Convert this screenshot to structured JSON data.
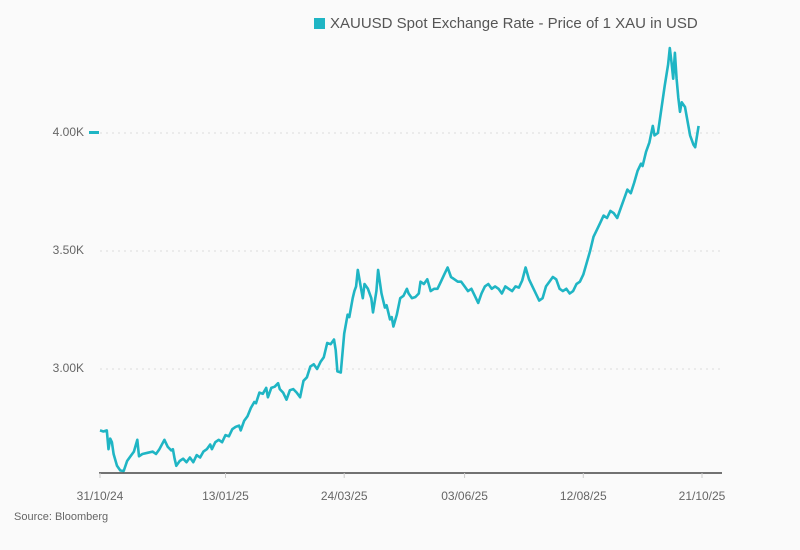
{
  "legend": {
    "label": "XAUUSD Spot Exchange Rate - Price of 1 XAU in USD",
    "color": "#1fb5c4"
  },
  "source": "Source: Bloomberg",
  "y_ticks": [
    {
      "label": "4.00K",
      "value": 4000
    },
    {
      "label": "3.50K",
      "value": 3500
    },
    {
      "label": "3.00K",
      "value": 3000
    }
  ],
  "x_ticks": [
    {
      "label": "31/10/24",
      "day": 0
    },
    {
      "label": "13/01/25",
      "day": 74
    },
    {
      "label": "24/03/25",
      "day": 144
    },
    {
      "label": "03/06/25",
      "day": 215
    },
    {
      "label": "12/08/25",
      "day": 285
    },
    {
      "label": "21/10/25",
      "day": 355
    }
  ],
  "chart_data": {
    "type": "line",
    "title": "XAUUSD Spot Exchange Rate - Price of 1 XAU in USD",
    "xlabel": "",
    "ylabel": "",
    "ylim": [
      2565,
      4390
    ],
    "x_range_days": [
      0,
      360
    ],
    "grid": true,
    "legend_position": "top",
    "series": [
      {
        "name": "XAUUSD Spot Exchange Rate - Price of 1 XAU in USD",
        "points": [
          [
            0,
            2740
          ],
          [
            2,
            2735
          ],
          [
            4,
            2740
          ],
          [
            5,
            2660
          ],
          [
            6,
            2705
          ],
          [
            7,
            2690
          ],
          [
            8,
            2640
          ],
          [
            10,
            2590
          ],
          [
            12,
            2570
          ],
          [
            14,
            2568
          ],
          [
            16,
            2610
          ],
          [
            18,
            2630
          ],
          [
            20,
            2650
          ],
          [
            22,
            2700
          ],
          [
            23,
            2630
          ],
          [
            25,
            2640
          ],
          [
            28,
            2645
          ],
          [
            31,
            2650
          ],
          [
            33,
            2640
          ],
          [
            35,
            2660
          ],
          [
            38,
            2700
          ],
          [
            40,
            2670
          ],
          [
            42,
            2655
          ],
          [
            43,
            2660
          ],
          [
            44,
            2620
          ],
          [
            45,
            2590
          ],
          [
            47,
            2610
          ],
          [
            49,
            2620
          ],
          [
            51,
            2605
          ],
          [
            53,
            2625
          ],
          [
            55,
            2605
          ],
          [
            57,
            2635
          ],
          [
            59,
            2625
          ],
          [
            61,
            2650
          ],
          [
            63,
            2660
          ],
          [
            65,
            2680
          ],
          [
            66,
            2660
          ],
          [
            68,
            2690
          ],
          [
            70,
            2700
          ],
          [
            72,
            2690
          ],
          [
            74,
            2720
          ],
          [
            76,
            2715
          ],
          [
            78,
            2745
          ],
          [
            80,
            2755
          ],
          [
            82,
            2760
          ],
          [
            83,
            2740
          ],
          [
            85,
            2780
          ],
          [
            87,
            2800
          ],
          [
            89,
            2835
          ],
          [
            91,
            2860
          ],
          [
            92,
            2855
          ],
          [
            94,
            2900
          ],
          [
            96,
            2895
          ],
          [
            98,
            2920
          ],
          [
            99,
            2880
          ],
          [
            101,
            2920
          ],
          [
            103,
            2925
          ],
          [
            105,
            2940
          ],
          [
            106,
            2915
          ],
          [
            108,
            2900
          ],
          [
            110,
            2870
          ],
          [
            112,
            2910
          ],
          [
            114,
            2915
          ],
          [
            116,
            2900
          ],
          [
            118,
            2880
          ],
          [
            120,
            2950
          ],
          [
            122,
            2965
          ],
          [
            124,
            3010
          ],
          [
            126,
            3020
          ],
          [
            128,
            3000
          ],
          [
            130,
            3030
          ],
          [
            132,
            3050
          ],
          [
            134,
            3110
          ],
          [
            136,
            3105
          ],
          [
            138,
            3125
          ],
          [
            139,
            3080
          ],
          [
            140,
            2990
          ],
          [
            142,
            2985
          ],
          [
            144,
            3150
          ],
          [
            146,
            3230
          ],
          [
            147,
            3220
          ],
          [
            149,
            3300
          ],
          [
            150,
            3330
          ],
          [
            151,
            3350
          ],
          [
            152,
            3420
          ],
          [
            154,
            3340
          ],
          [
            155,
            3300
          ],
          [
            156,
            3360
          ],
          [
            158,
            3340
          ],
          [
            160,
            3300
          ],
          [
            161,
            3240
          ],
          [
            163,
            3330
          ],
          [
            164,
            3420
          ],
          [
            166,
            3320
          ],
          [
            168,
            3260
          ],
          [
            169,
            3270
          ],
          [
            171,
            3210
          ],
          [
            172,
            3220
          ],
          [
            173,
            3180
          ],
          [
            175,
            3230
          ],
          [
            177,
            3300
          ],
          [
            179,
            3310
          ],
          [
            181,
            3340
          ],
          [
            182,
            3320
          ],
          [
            184,
            3300
          ],
          [
            186,
            3305
          ],
          [
            188,
            3320
          ],
          [
            189,
            3370
          ],
          [
            191,
            3360
          ],
          [
            193,
            3380
          ],
          [
            195,
            3330
          ],
          [
            197,
            3340
          ],
          [
            199,
            3340
          ],
          [
            201,
            3370
          ],
          [
            203,
            3400
          ],
          [
            205,
            3430
          ],
          [
            207,
            3390
          ],
          [
            209,
            3380
          ],
          [
            211,
            3370
          ],
          [
            213,
            3370
          ],
          [
            215,
            3350
          ],
          [
            217,
            3330
          ],
          [
            219,
            3340
          ],
          [
            221,
            3310
          ],
          [
            223,
            3280
          ],
          [
            225,
            3320
          ],
          [
            227,
            3350
          ],
          [
            229,
            3360
          ],
          [
            231,
            3340
          ],
          [
            233,
            3350
          ],
          [
            235,
            3340
          ],
          [
            237,
            3320
          ],
          [
            239,
            3350
          ],
          [
            241,
            3340
          ],
          [
            243,
            3330
          ],
          [
            245,
            3350
          ],
          [
            247,
            3345
          ],
          [
            249,
            3375
          ],
          [
            251,
            3430
          ],
          [
            253,
            3380
          ],
          [
            255,
            3350
          ],
          [
            257,
            3320
          ],
          [
            259,
            3290
          ],
          [
            261,
            3300
          ],
          [
            263,
            3350
          ],
          [
            265,
            3370
          ],
          [
            267,
            3390
          ],
          [
            269,
            3380
          ],
          [
            271,
            3340
          ],
          [
            273,
            3330
          ],
          [
            275,
            3340
          ],
          [
            277,
            3320
          ],
          [
            279,
            3330
          ],
          [
            281,
            3360
          ],
          [
            283,
            3370
          ],
          [
            285,
            3400
          ],
          [
            287,
            3450
          ],
          [
            289,
            3500
          ],
          [
            291,
            3560
          ],
          [
            293,
            3590
          ],
          [
            295,
            3620
          ],
          [
            297,
            3650
          ],
          [
            299,
            3640
          ],
          [
            301,
            3670
          ],
          [
            303,
            3660
          ],
          [
            305,
            3640
          ],
          [
            307,
            3680
          ],
          [
            309,
            3720
          ],
          [
            311,
            3760
          ],
          [
            313,
            3745
          ],
          [
            315,
            3790
          ],
          [
            317,
            3840
          ],
          [
            319,
            3870
          ],
          [
            320,
            3860
          ],
          [
            322,
            3920
          ],
          [
            324,
            3960
          ],
          [
            326,
            4030
          ],
          [
            327,
            3990
          ],
          [
            329,
            4000
          ],
          [
            331,
            4100
          ],
          [
            333,
            4200
          ],
          [
            335,
            4290
          ],
          [
            336,
            4360
          ],
          [
            337,
            4300
          ],
          [
            338,
            4230
          ],
          [
            339,
            4340
          ],
          [
            340,
            4230
          ],
          [
            341,
            4150
          ],
          [
            342,
            4090
          ],
          [
            343,
            4130
          ],
          [
            345,
            4110
          ],
          [
            346,
            4070
          ],
          [
            348,
            3990
          ],
          [
            350,
            3950
          ],
          [
            351,
            3940
          ],
          [
            352,
            3985
          ],
          [
            353,
            4030
          ]
        ]
      }
    ]
  }
}
